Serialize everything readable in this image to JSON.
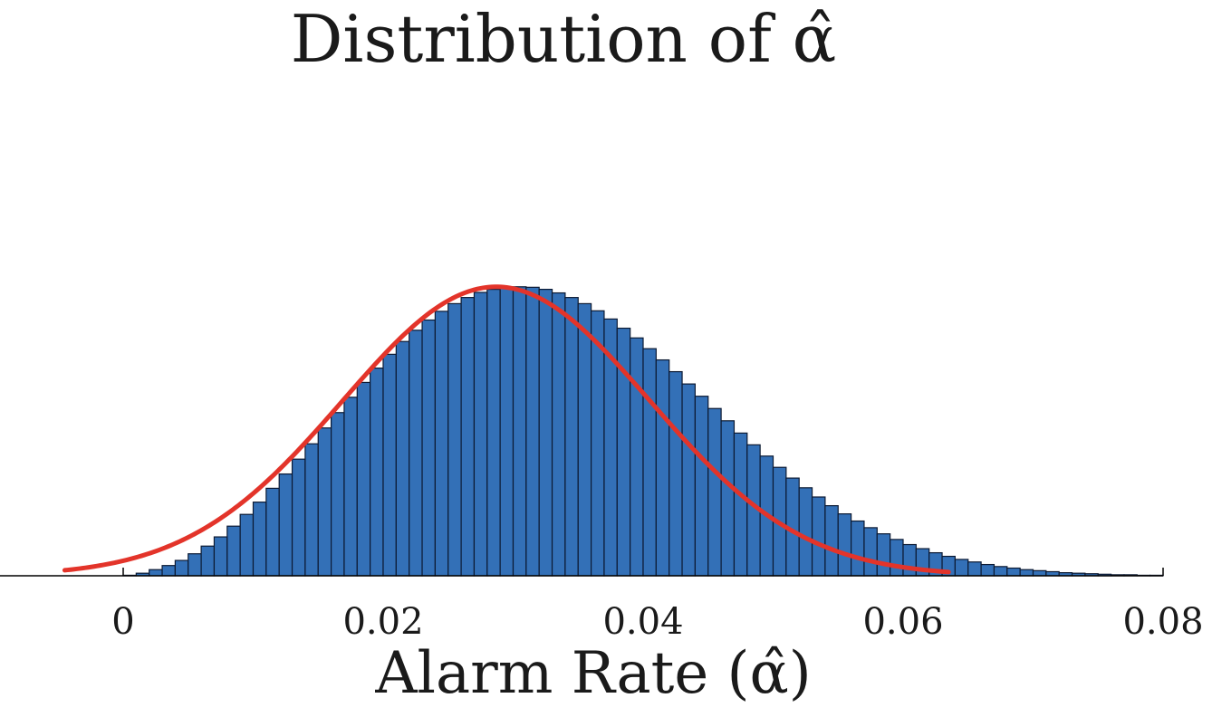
{
  "chart_data": {
    "type": "bar",
    "title": "Distribution of α̂",
    "xlabel": "Alarm Rate (α̂)",
    "ylabel": "",
    "xlim": [
      0,
      0.08
    ],
    "ylim": [
      0,
      1
    ],
    "xticks": [
      0,
      0.02,
      0.04,
      0.06,
      0.08
    ],
    "xtick_labels": [
      "0",
      "0.02",
      "0.04",
      "0.06",
      "0.08"
    ],
    "grid": false,
    "legend": "none",
    "bin_width": 0.001,
    "bins_start": 0,
    "histogram_values": [
      0.001,
      0.005,
      0.012,
      0.02,
      0.03,
      0.043,
      0.058,
      0.076,
      0.097,
      0.12,
      0.144,
      0.171,
      0.199,
      0.228,
      0.258,
      0.289,
      0.319,
      0.349,
      0.378,
      0.406,
      0.433,
      0.458,
      0.48,
      0.5,
      0.517,
      0.532,
      0.544,
      0.554,
      0.56,
      0.564,
      0.565,
      0.564,
      0.56,
      0.553,
      0.544,
      0.532,
      0.518,
      0.502,
      0.484,
      0.465,
      0.444,
      0.422,
      0.399,
      0.375,
      0.351,
      0.327,
      0.303,
      0.279,
      0.256,
      0.234,
      0.212,
      0.191,
      0.172,
      0.154,
      0.137,
      0.121,
      0.107,
      0.094,
      0.082,
      0.071,
      0.061,
      0.053,
      0.045,
      0.038,
      0.032,
      0.027,
      0.022,
      0.018,
      0.015,
      0.012,
      0.01,
      0.008,
      0.006,
      0.005,
      0.004,
      0.003,
      0.002,
      0.002,
      0.001,
      0.001
    ],
    "fit_curve": {
      "type": "normal",
      "mean": 0.0287,
      "std": 0.0118,
      "x_range": [
        -0.0045,
        0.0635
      ],
      "peak": 0.565
    },
    "colors": {
      "bars": "#3370b7",
      "bar_edges": "#0c1a33",
      "fit_line": "#e3342a"
    }
  }
}
